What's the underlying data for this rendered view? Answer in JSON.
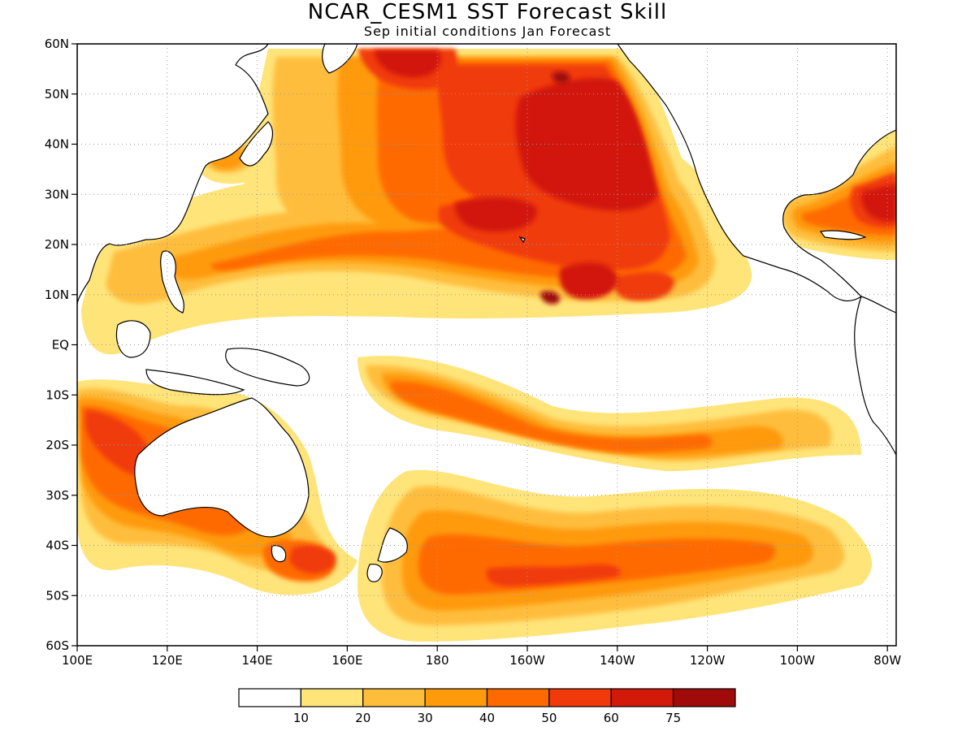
{
  "title": "NCAR_CESM1 SST Forecast Skill",
  "subtitle": "Sep initial conditions  Jan Forecast",
  "axes": {
    "lat_labels": [
      "60N",
      "50N",
      "40N",
      "30N",
      "20N",
      "10N",
      "EQ",
      "10S",
      "20S",
      "30S",
      "40S",
      "50S",
      "60S"
    ],
    "lon_labels": [
      "100E",
      "120E",
      "140E",
      "160E",
      "180",
      "160W",
      "140W",
      "120W",
      "100W",
      "80W"
    ]
  },
  "colorbar": {
    "labels": [
      "10",
      "20",
      "30",
      "40",
      "50",
      "60",
      "75"
    ],
    "colors": [
      "#ffffff",
      "#ffe47a",
      "#ffbd3c",
      "#ff9a0a",
      "#ff6a00",
      "#f03a0a",
      "#d2190a",
      "#a00a0a"
    ]
  },
  "map_style": {
    "land_outline": "#000000",
    "grid": "dotted-gray"
  }
}
